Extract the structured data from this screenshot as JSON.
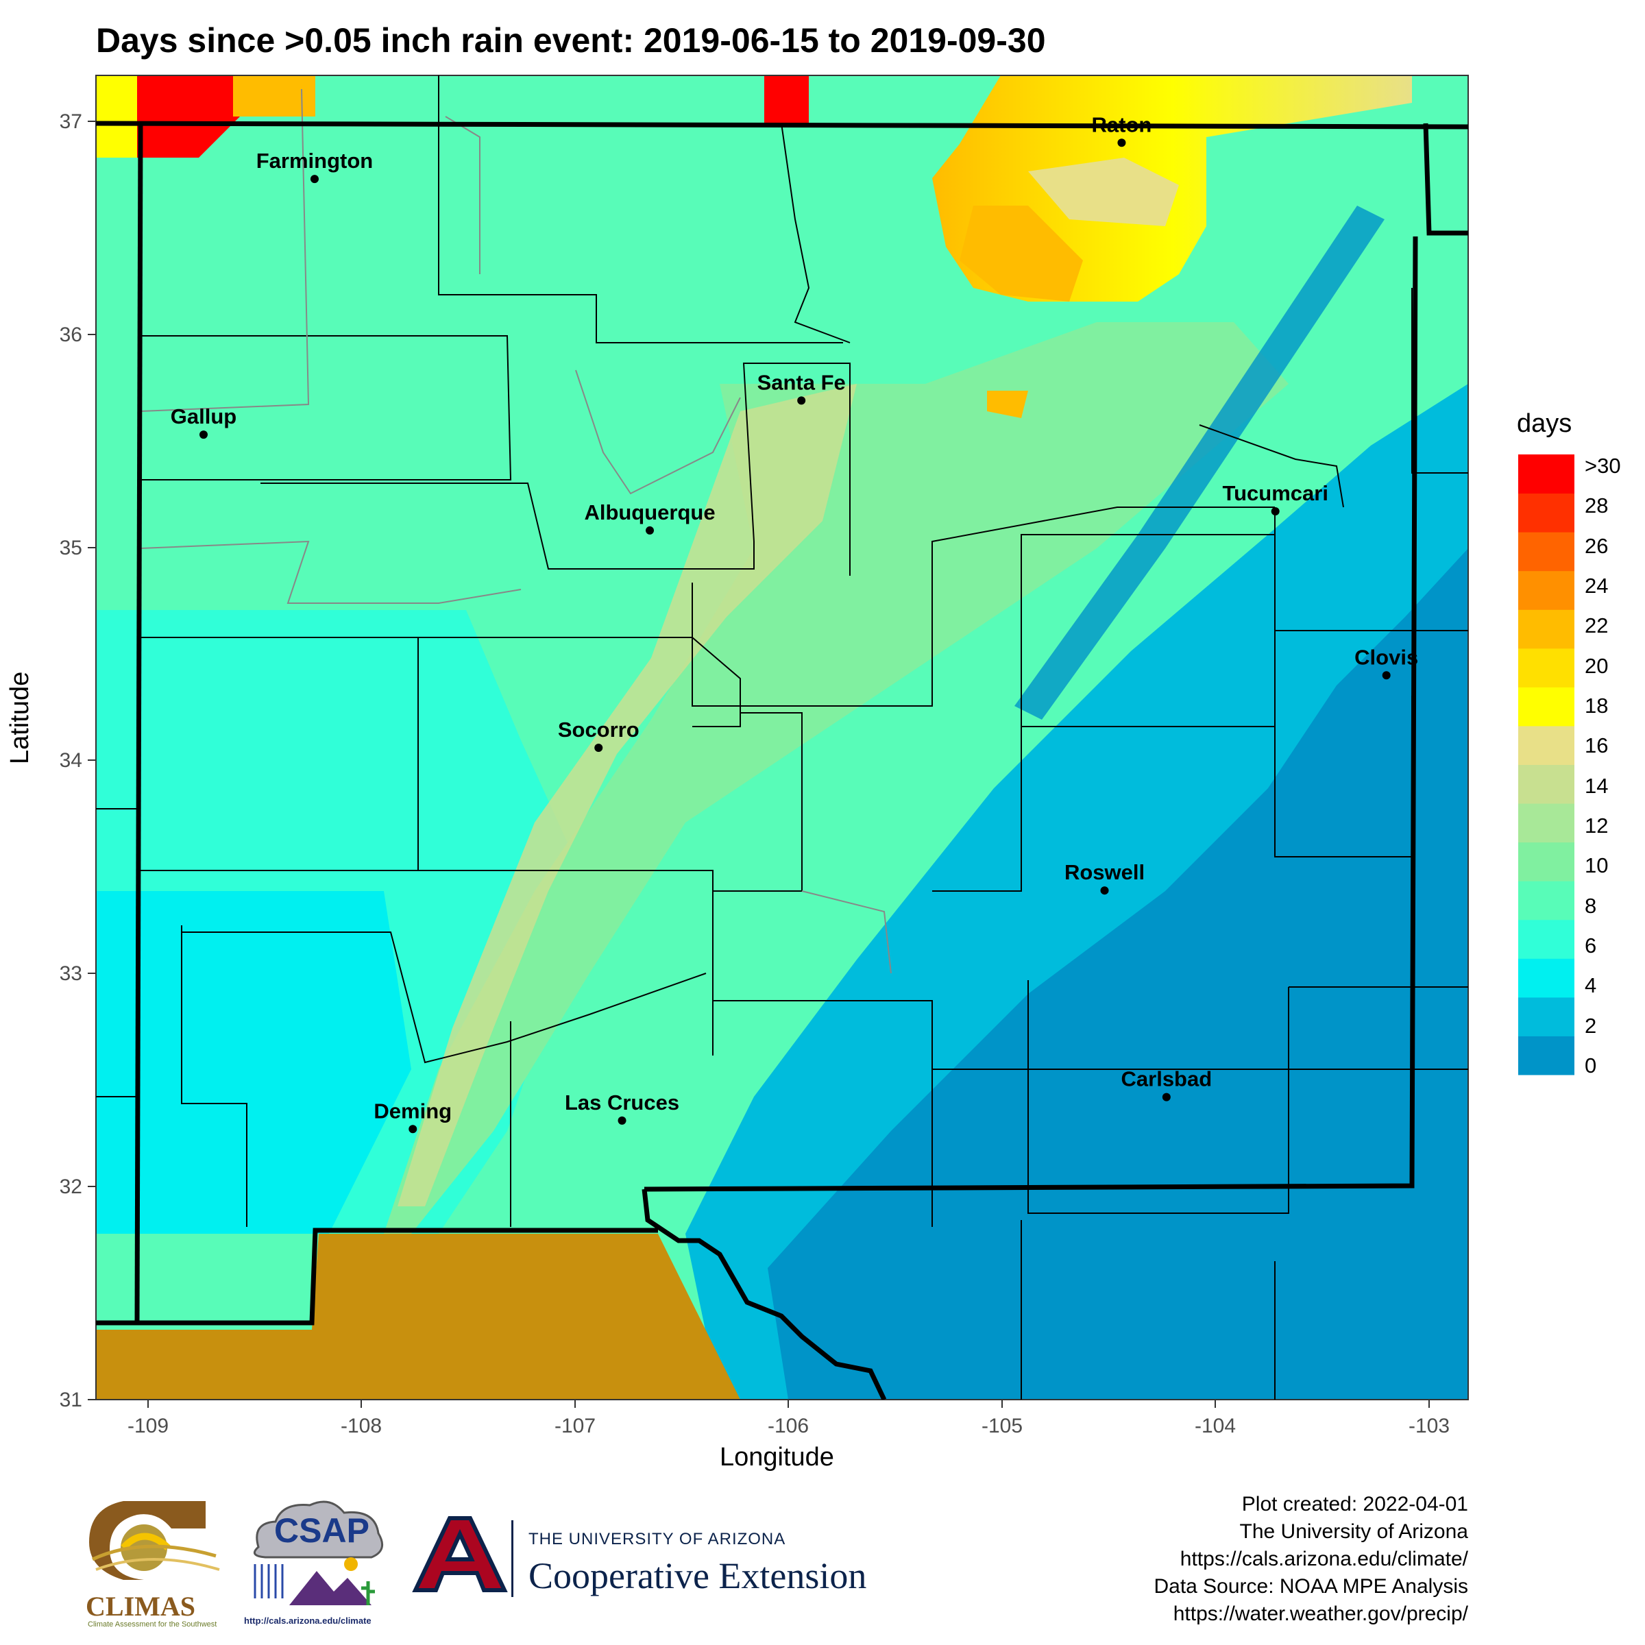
{
  "title": "Days since >0.05 inch rain event: 2019-06-15 to 2019-09-30",
  "axes": {
    "xlabel": "Longitude",
    "ylabel": "Latitude",
    "x_ticks": [
      "-109",
      "-108",
      "-107",
      "-106",
      "-105",
      "-104",
      "-103"
    ],
    "y_ticks": [
      "31",
      "32",
      "33",
      "34",
      "35",
      "36",
      "37"
    ]
  },
  "legend": {
    "title": "days",
    "labels": [
      ">30",
      "28",
      "26",
      "24",
      "22",
      "20",
      "18",
      "16",
      "14",
      "12",
      "10",
      "8",
      "6",
      "4",
      "2",
      "0"
    ]
  },
  "cities": [
    {
      "name": "Farmington",
      "lon": -108.22,
      "lat": 36.73
    },
    {
      "name": "Raton",
      "lon": -104.44,
      "lat": 36.9
    },
    {
      "name": "Santa Fe",
      "lon": -105.94,
      "lat": 35.69
    },
    {
      "name": "Gallup",
      "lon": -108.74,
      "lat": 35.53
    },
    {
      "name": "Albuquerque",
      "lon": -106.65,
      "lat": 35.08
    },
    {
      "name": "Tucumcari",
      "lon": -103.72,
      "lat": 35.17
    },
    {
      "name": "Clovis",
      "lon": -103.2,
      "lat": 34.4
    },
    {
      "name": "Socorro",
      "lon": -106.89,
      "lat": 34.06
    },
    {
      "name": "Roswell",
      "lon": -104.52,
      "lat": 33.39
    },
    {
      "name": "Carlsbad",
      "lon": -104.23,
      "lat": 32.42
    },
    {
      "name": "Deming",
      "lon": -107.76,
      "lat": 32.27
    },
    {
      "name": "Las Cruces",
      "lon": -106.78,
      "lat": 32.31
    }
  ],
  "credits": [
    "Plot created: 2022-04-01",
    "The University of Arizona",
    "https://cals.arizona.edu/climate/",
    "Data Source: NOAA MPE Analysis",
    "https://water.weather.gov/precip/"
  ],
  "logos": {
    "climas": {
      "name": "CLIMAS",
      "tagline": "Climate Assessment for the Southwest"
    },
    "csap": {
      "name": "CSAP",
      "url": "http://cals.arizona.edu/climate"
    },
    "ua": {
      "line1": "THE UNIVERSITY OF ARIZONA",
      "line2": "Cooperative Extension"
    }
  },
  "colors": {
    "scale": [
      "#0094c8",
      "#00bcdc",
      "#00f0f0",
      "#30ffd8",
      "#58fcb8",
      "#80f0a0",
      "#a8e898",
      "#c8e090",
      "#e8e088",
      "#ffff00",
      "#ffe000",
      "#ffbc00",
      "#ff9000",
      "#ff6400",
      "#ff3000",
      "#ff0000"
    ],
    "mexico": "#c8900e",
    "state_border": "#000000",
    "county_border": "#000000",
    "reservation_border": "#888888"
  }
}
